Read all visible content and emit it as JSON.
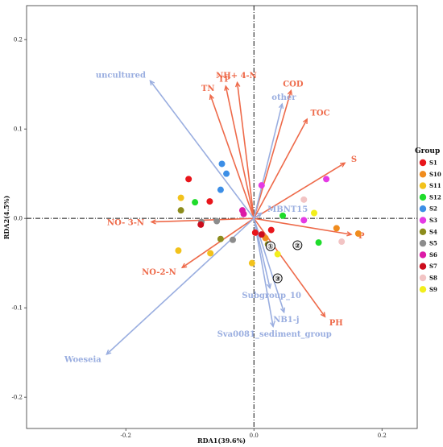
{
  "chart_data": {
    "type": "scatter",
    "subtype": "rda-biplot",
    "xlabel": "RDA1(39.6%)",
    "ylabel": "RDA2(4.5%)",
    "xlim": [
      -0.355,
      0.255
    ],
    "ylim": [
      -0.235,
      0.238
    ],
    "xticks": [
      {
        "v": -0.2,
        "label": "-0.2"
      },
      {
        "v": 0,
        "label": "0.0"
      },
      {
        "v": 0.2,
        "label": "0.2"
      }
    ],
    "yticks": [
      {
        "v": -0.2,
        "label": "-0.2"
      },
      {
        "v": -0.1,
        "label": "-0.1"
      },
      {
        "v": 0,
        "label": "0.0"
      },
      {
        "v": 0.1,
        "label": "0.1"
      },
      {
        "v": 0.2,
        "label": "0.2"
      }
    ],
    "legend": {
      "title": "Group",
      "position": "right",
      "items": [
        {
          "name": "S1",
          "color": "#e8151b"
        },
        {
          "name": "S10",
          "color": "#f08c1e"
        },
        {
          "name": "S11",
          "color": "#f2c21c"
        },
        {
          "name": "S12",
          "color": "#1fdc2b"
        },
        {
          "name": "S2",
          "color": "#3c8ee6"
        },
        {
          "name": "S3",
          "color": "#e43ae4"
        },
        {
          "name": "S4",
          "color": "#8c8c1c"
        },
        {
          "name": "S5",
          "color": "#8c8c8c"
        },
        {
          "name": "S6",
          "color": "#dc1aa6"
        },
        {
          "name": "S7",
          "color": "#cc0c1c"
        },
        {
          "name": "S8",
          "color": "#f2c4c4"
        },
        {
          "name": "S9",
          "color": "#f2ee1c"
        }
      ]
    },
    "env_color": "#ee6a4a",
    "species_color": "#9aaee0",
    "env_arrows": [
      {
        "label": "NH+ 4-N",
        "x": -0.026,
        "y": 0.152
      },
      {
        "label": "TP",
        "x": -0.044,
        "y": 0.148
      },
      {
        "label": "TN",
        "x": -0.068,
        "y": 0.138
      },
      {
        "label": "COD",
        "x": 0.058,
        "y": 0.143
      },
      {
        "label": "TOC",
        "x": 0.083,
        "y": 0.111
      },
      {
        "label": "S",
        "x": 0.142,
        "y": 0.062
      },
      {
        "label": "P",
        "x": 0.152,
        "y": -0.018
      },
      {
        "label": "PH",
        "x": 0.111,
        "y": -0.11
      },
      {
        "label": "NO- 3-N",
        "x": -0.16,
        "y": -0.004
      },
      {
        "label": "NO-2-N",
        "x": -0.112,
        "y": -0.055
      }
    ],
    "species_arrows": [
      {
        "label": "uncultured",
        "x": -0.162,
        "y": 0.154
      },
      {
        "label": "other",
        "x": 0.044,
        "y": 0.128
      },
      {
        "label": "MBNT15",
        "x": 0.012,
        "y": 0.006
      },
      {
        "label": "Woeseia",
        "x": -0.23,
        "y": -0.152
      },
      {
        "label": "Subgroup_10",
        "x": 0.025,
        "y": -0.078
      },
      {
        "label": "NB1-j",
        "x": 0.047,
        "y": -0.105
      },
      {
        "label": "Sva0081_sediment_group",
        "x": 0.03,
        "y": -0.121
      }
    ],
    "circled_labels": [
      {
        "label": "①",
        "x": 0.026,
        "y": -0.031
      },
      {
        "label": "②",
        "x": 0.068,
        "y": -0.03
      },
      {
        "label": "③",
        "x": 0.037,
        "y": -0.067
      }
    ],
    "points": [
      {
        "group": "S1",
        "x": -0.102,
        "y": 0.044
      },
      {
        "group": "S1",
        "x": -0.069,
        "y": 0.019
      },
      {
        "group": "S1",
        "x": 0.002,
        "y": -0.016
      },
      {
        "group": "S1",
        "x": 0.027,
        "y": -0.013
      },
      {
        "group": "S10",
        "x": 0.129,
        "y": -0.011
      },
      {
        "group": "S10",
        "x": 0.163,
        "y": -0.017
      },
      {
        "group": "S10",
        "x": 0.018,
        "y": -0.022
      },
      {
        "group": "S11",
        "x": -0.114,
        "y": 0.023
      },
      {
        "group": "S11",
        "x": -0.118,
        "y": -0.036
      },
      {
        "group": "S11",
        "x": -0.068,
        "y": -0.039
      },
      {
        "group": "S11",
        "x": -0.003,
        "y": -0.05
      },
      {
        "group": "S12",
        "x": -0.092,
        "y": 0.018
      },
      {
        "group": "S12",
        "x": 0.045,
        "y": 0.003
      },
      {
        "group": "S12",
        "x": 0.101,
        "y": -0.027
      },
      {
        "group": "S2",
        "x": -0.05,
        "y": 0.061
      },
      {
        "group": "S2",
        "x": -0.043,
        "y": 0.05
      },
      {
        "group": "S2",
        "x": -0.052,
        "y": 0.032
      },
      {
        "group": "S3",
        "x": 0.012,
        "y": 0.037
      },
      {
        "group": "S3",
        "x": 0.113,
        "y": 0.044
      },
      {
        "group": "S3",
        "x": 0.078,
        "y": -0.002
      },
      {
        "group": "S4",
        "x": -0.114,
        "y": 0.009
      },
      {
        "group": "S4",
        "x": -0.052,
        "y": -0.023
      },
      {
        "group": "S4",
        "x": 0.022,
        "y": -0.029
      },
      {
        "group": "S5",
        "x": -0.082,
        "y": -0.004
      },
      {
        "group": "S5",
        "x": -0.058,
        "y": -0.003
      },
      {
        "group": "S5",
        "x": -0.033,
        "y": -0.024
      },
      {
        "group": "S6",
        "x": -0.018,
        "y": 0.009
      },
      {
        "group": "S6",
        "x": -0.016,
        "y": 0.005
      },
      {
        "group": "S7",
        "x": -0.083,
        "y": -0.007
      },
      {
        "group": "S7",
        "x": 0.012,
        "y": -0.018
      },
      {
        "group": "S8",
        "x": 0.078,
        "y": 0.021
      },
      {
        "group": "S8",
        "x": 0.137,
        "y": -0.026
      },
      {
        "group": "S9",
        "x": 0.094,
        "y": 0.006
      },
      {
        "group": "S9",
        "x": 0.037,
        "y": -0.04
      }
    ]
  }
}
